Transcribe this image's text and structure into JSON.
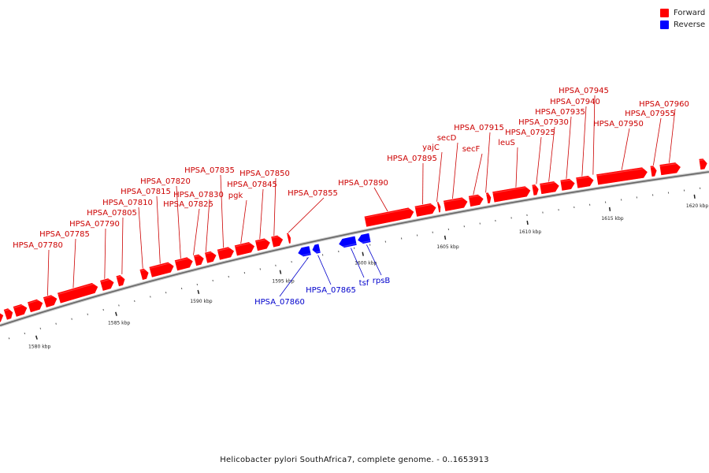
{
  "legend": {
    "forward_label": "Forward",
    "reverse_label": "Reverse",
    "forward_color": "#ff0000",
    "reverse_color": "#0000ff"
  },
  "caption": "Helicobacter pylori SouthAfrica7, complete genome. - 0..1653913",
  "colors": {
    "forward": "#ff0000",
    "reverse": "#0000ff",
    "backbone": "#999999",
    "label_forward": "#cc0000",
    "label_reverse": "#0000cc",
    "tick_text": "#222222"
  },
  "ticks": [
    "1580 kbp",
    "1585 kbp",
    "1590 kbp",
    "1595 kbp",
    "1600 kbp",
    "1605 kbp",
    "1610 kbp",
    "1615 kbp",
    "1620 kbp"
  ],
  "forward_genes": [
    "HPSA_07780",
    "HPSA_07785",
    "HPSA_07790",
    "HPSA_07805",
    "HPSA_07810",
    "HPSA_07815",
    "HPSA_07820",
    "HPSA_07825",
    "HPSA_07830",
    "HPSA_07835",
    "pgk",
    "HPSA_07845",
    "HPSA_07850",
    "HPSA_07855",
    "HPSA_07890",
    "HPSA_07895",
    "yajC",
    "secD",
    "secF",
    "HPSA_07915",
    "leuS",
    "HPSA_07925",
    "HPSA_07930",
    "HPSA_07935",
    "HPSA_07940",
    "HPSA_07945",
    "HPSA_07950",
    "HPSA_07955",
    "HPSA_07960"
  ],
  "reverse_genes": [
    "HPSA_07860",
    "HPSA_07865",
    "tsf",
    "rpsB"
  ]
}
